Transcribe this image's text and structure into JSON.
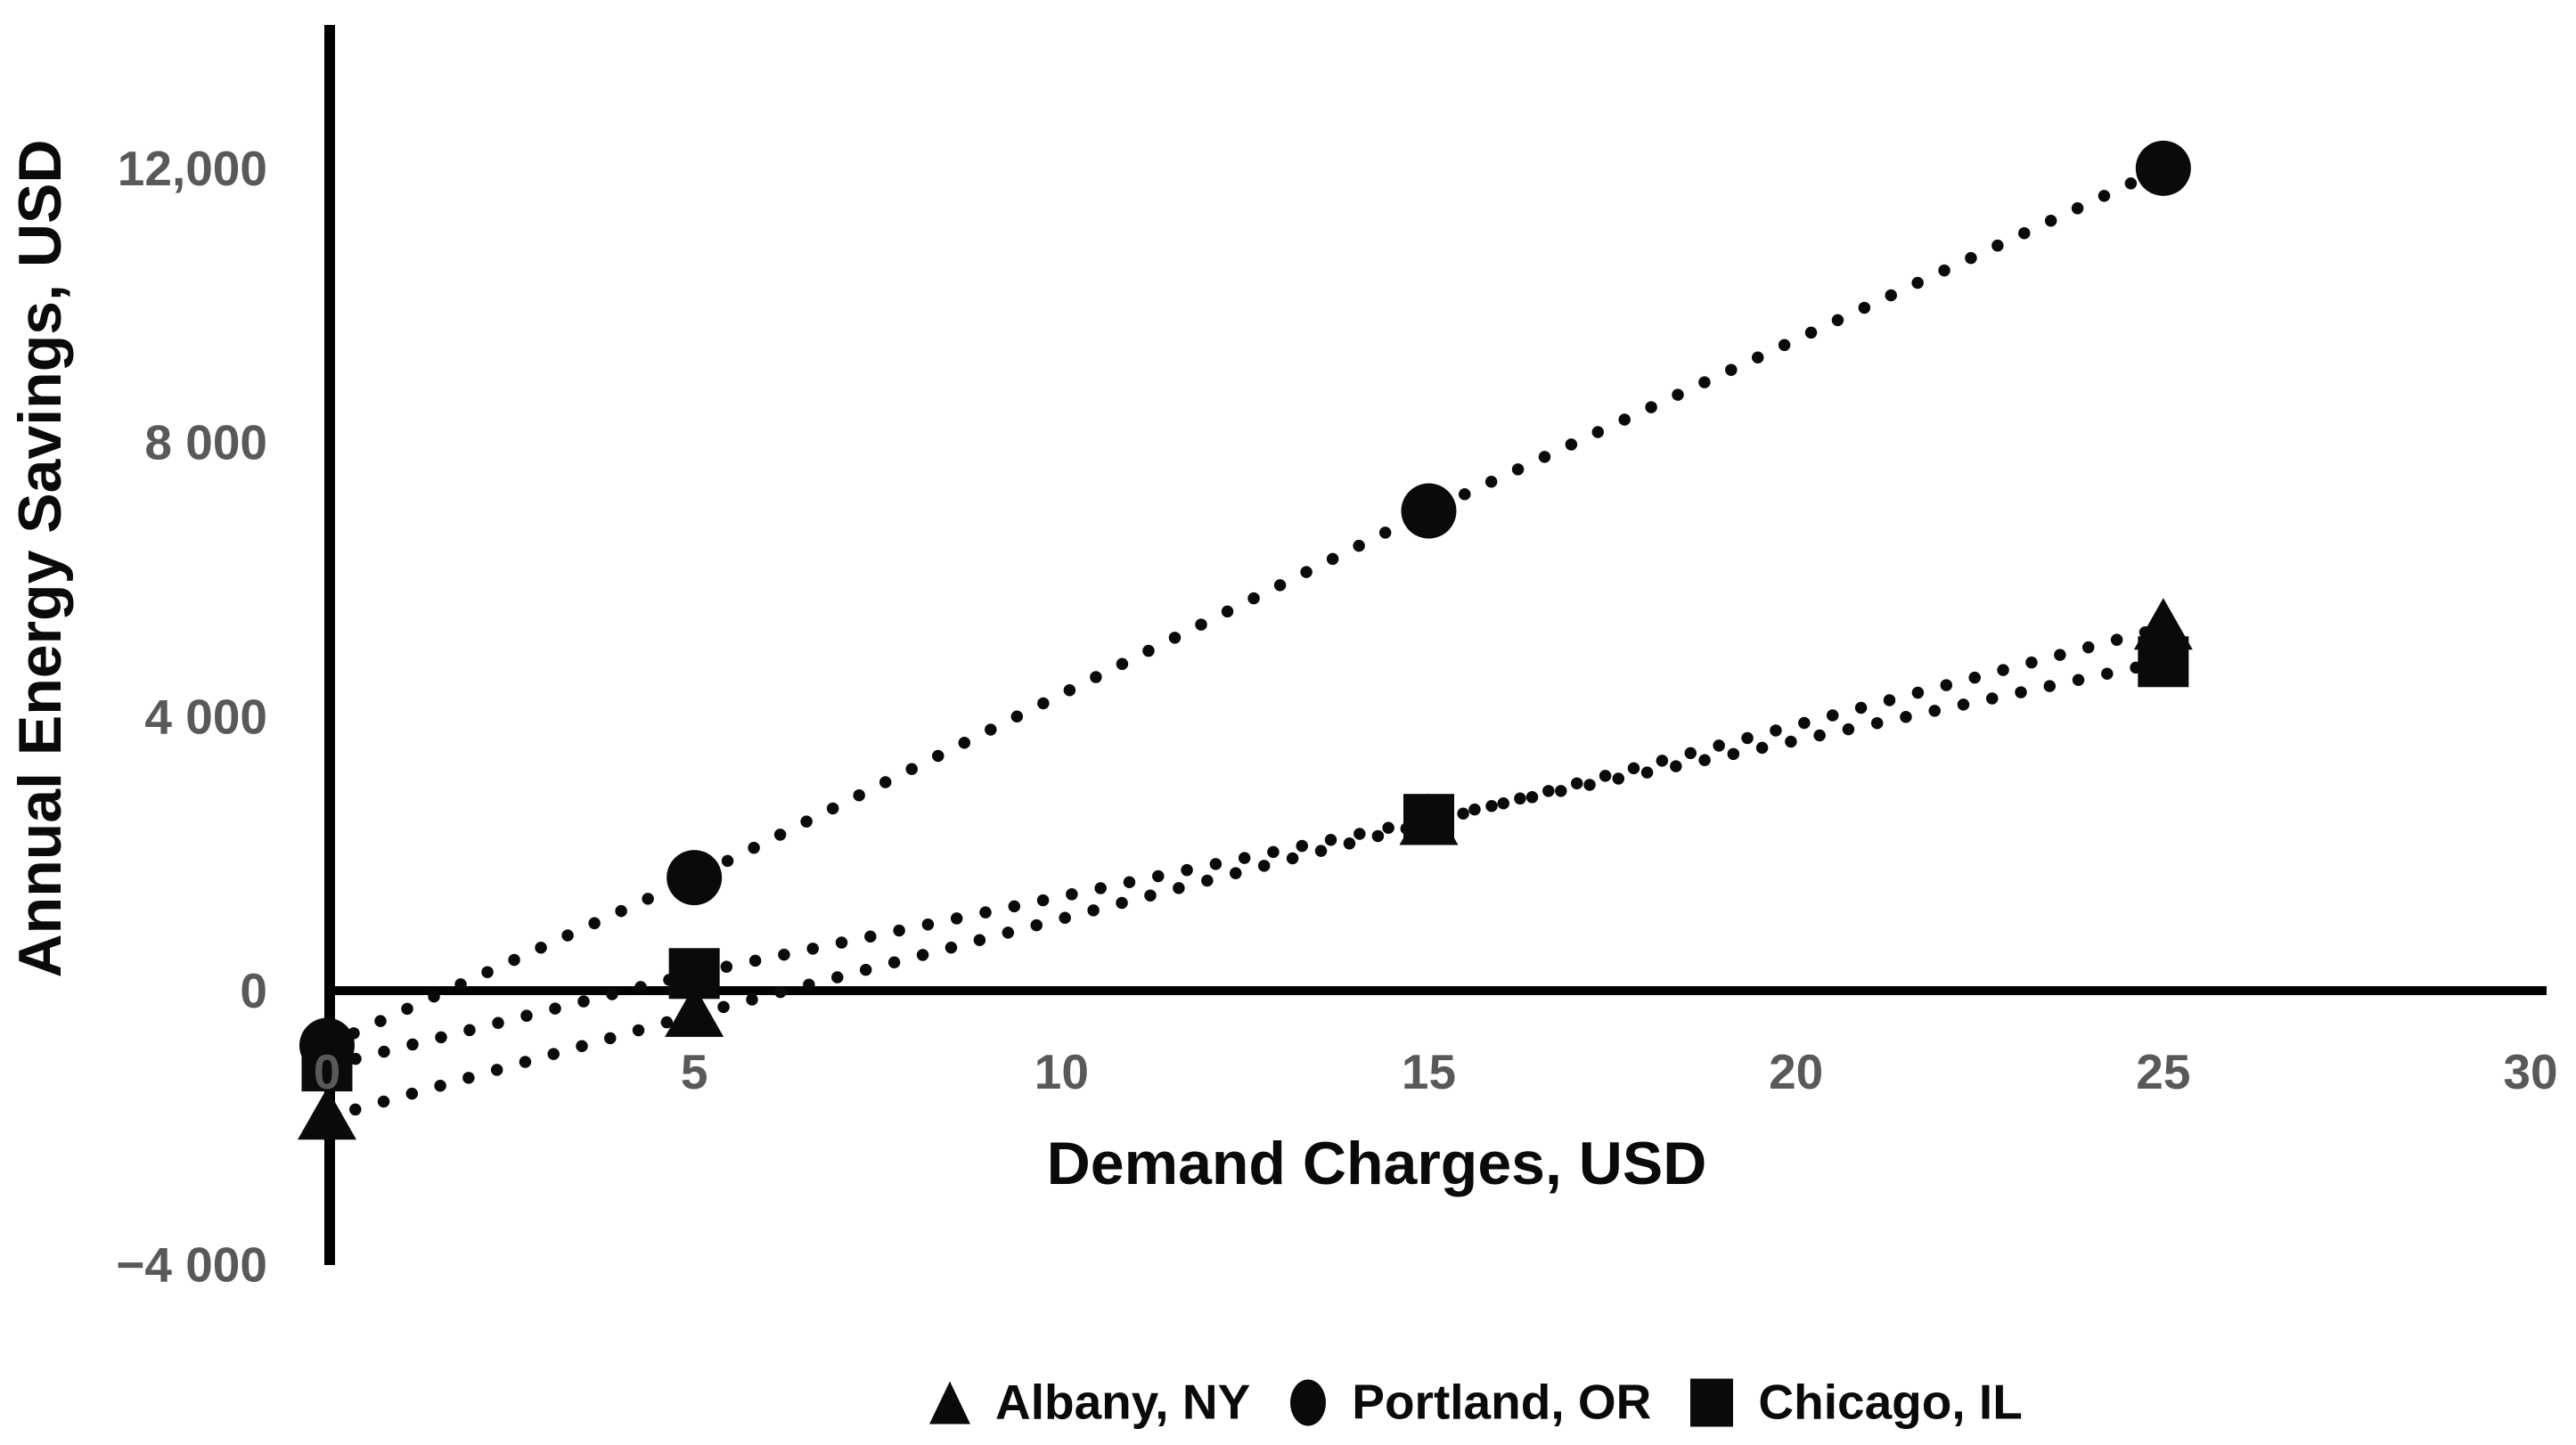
{
  "chart_data": {
    "type": "scatter",
    "title": "",
    "xlabel": "Demand Charges, USD",
    "ylabel": "Annual Energy Savings, USD",
    "x": [
      0,
      5,
      15,
      25
    ],
    "series": [
      {
        "name": "Albany, NY",
        "marker": "triangle",
        "values": [
          -1850,
          -350,
          2450,
          5300
        ]
      },
      {
        "name": "Portland, OR",
        "marker": "circle",
        "values": [
          -800,
          1650,
          7000,
          12000
        ]
      },
      {
        "name": "Chicago, IL",
        "marker": "square",
        "values": [
          -1100,
          250,
          2500,
          4800
        ]
      }
    ],
    "line_style": "dotted",
    "grid": false,
    "legend_position": "bottom",
    "x_axis": {
      "tick_values": [
        0,
        5,
        10,
        15,
        20,
        25,
        30
      ],
      "tick_labels": [
        "0",
        "5",
        "10",
        "15",
        "20",
        "25",
        "30"
      ],
      "range": [
        0,
        30
      ]
    },
    "y_axis": {
      "tick_values": [
        12000,
        8000,
        4000,
        0,
        -4000
      ],
      "tick_labels": [
        "12,000",
        "8 000",
        "4 000",
        "0",
        "−4 000"
      ],
      "range": [
        -4000,
        14000
      ]
    }
  },
  "legend": {
    "items": [
      {
        "label": "Albany, NY",
        "marker": "triangle"
      },
      {
        "label": "Portland, OR",
        "marker": "circle"
      },
      {
        "label": "Chicago, IL",
        "marker": "square"
      }
    ]
  },
  "colors": {
    "background": "#ffffff",
    "axis": "#000000",
    "tick_label": "#595959",
    "text": "#0a0a0a",
    "marker": "#0a0a0a"
  }
}
